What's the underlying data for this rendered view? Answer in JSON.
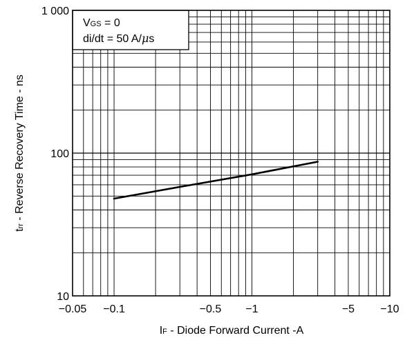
{
  "chart_data": {
    "type": "line",
    "xscale": "log",
    "yscale": "log",
    "xlim": [
      -0.05,
      -10
    ],
    "ylim": [
      10,
      1000
    ],
    "x_ticks": [
      {
        "value": -0.05,
        "label": "−0.05"
      },
      {
        "value": -0.1,
        "label": "−0.1"
      },
      {
        "value": -0.5,
        "label": "−0.5"
      },
      {
        "value": -1,
        "label": "−1"
      },
      {
        "value": -5,
        "label": "−5"
      },
      {
        "value": -10,
        "label": "−10"
      }
    ],
    "y_ticks": [
      {
        "value": 10,
        "label": "10"
      },
      {
        "value": 100,
        "label": "100"
      },
      {
        "value": 1000,
        "label": "1 000"
      }
    ],
    "xlabel": {
      "sym": "I",
      "sub": "F",
      "rest": " - Diode Forward Current -A"
    },
    "ylabel": {
      "sym": "t",
      "sub": "rr",
      "rest": " - Reverse Recovery Time - ns"
    },
    "annotation": {
      "line1": {
        "sym": "V",
        "sub": "GS",
        "rest": " = 0"
      },
      "line2": {
        "pre": "di/dt = 50 A/",
        "mu": "μ",
        "post": "s"
      }
    },
    "grid": true,
    "series": [
      {
        "color": "#000000",
        "x": [
          -0.1,
          -0.3,
          -1,
          -3
        ],
        "y": [
          48,
          58,
          71,
          87
        ]
      }
    ]
  }
}
